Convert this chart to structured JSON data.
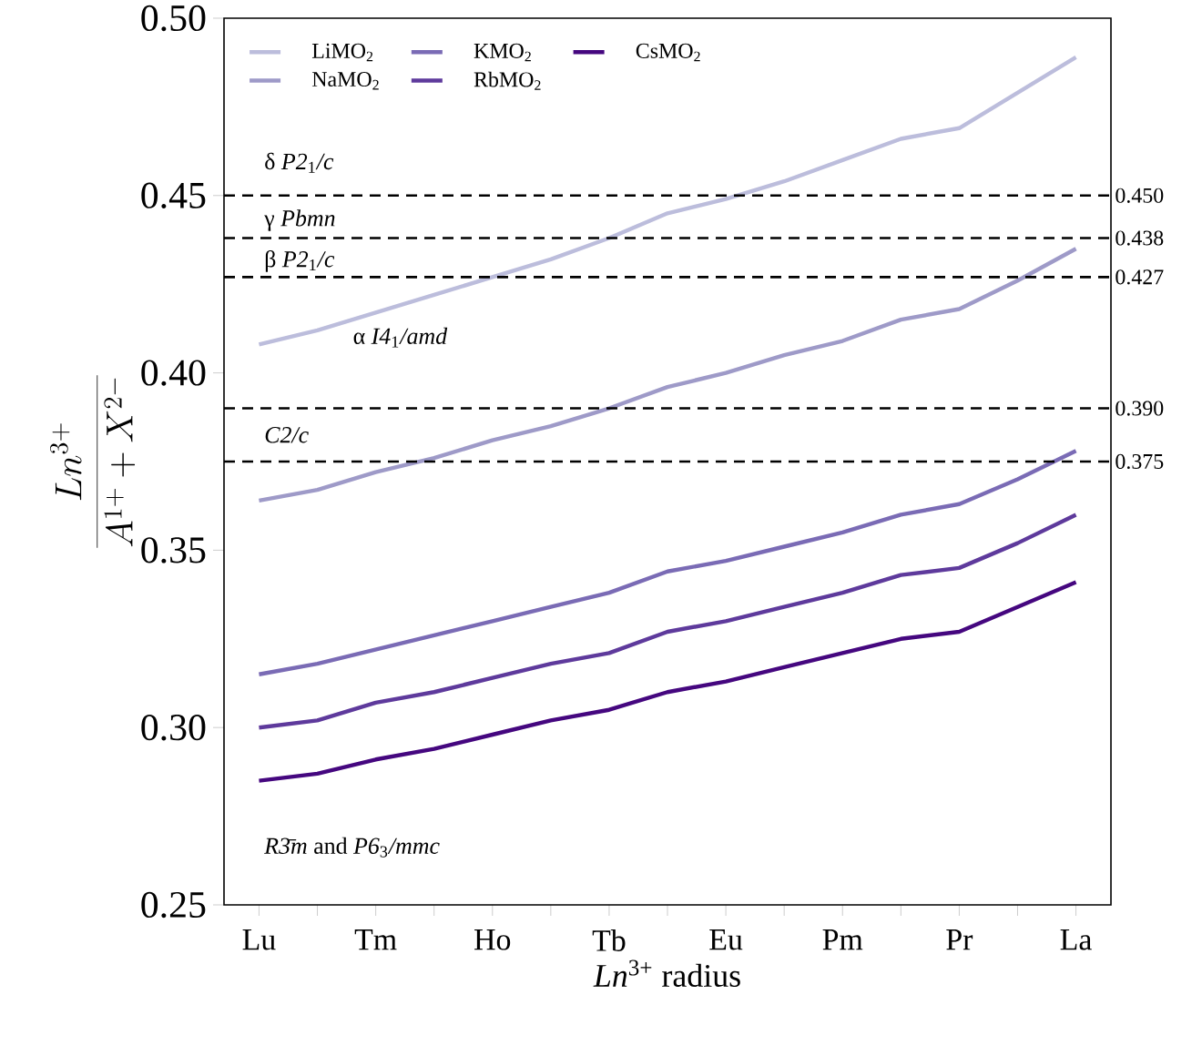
{
  "chart_data": {
    "type": "line",
    "xlabel": "*Ln*$^{3+}$ radius",
    "ylabel": "\\frac{Ln^{3+}}{A^{1+}+X^{2-}}",
    "categories": [
      "Lu",
      null,
      "Tm",
      null,
      "Ho",
      null,
      "Tb",
      null,
      "Eu",
      null,
      "Pm",
      null,
      "Pr",
      null,
      "La"
    ],
    "series": [
      {
        "name": "LiMO$_{2}$",
        "color": "#bcbddc",
        "values": [
          0.408,
          0.412,
          0.417,
          0.422,
          0.427,
          0.432,
          0.438,
          0.445,
          0.449,
          0.454,
          0.46,
          0.466,
          0.469,
          0.479,
          0.489
        ]
      },
      {
        "name": "NaMO$_{2}$",
        "color": "#9e9ac8",
        "values": [
          0.364,
          0.367,
          0.372,
          0.376,
          0.381,
          0.385,
          0.39,
          0.396,
          0.4,
          0.405,
          0.409,
          0.415,
          0.418,
          0.426,
          0.435
        ]
      },
      {
        "name": "KMO$_{2}$",
        "color": "#7a6bb5",
        "values": [
          0.315,
          0.318,
          0.322,
          0.326,
          0.33,
          0.334,
          0.338,
          0.344,
          0.347,
          0.351,
          0.355,
          0.36,
          0.363,
          0.37,
          0.378
        ]
      },
      {
        "name": "RbMO$_{2}$",
        "color": "#5e3a9c",
        "values": [
          0.3,
          0.302,
          0.307,
          0.31,
          0.314,
          0.318,
          0.321,
          0.327,
          0.33,
          0.334,
          0.338,
          0.343,
          0.345,
          0.352,
          0.36
        ]
      },
      {
        "name": "CsMO$_{2}$",
        "color": "#45077f",
        "values": [
          0.285,
          0.287,
          0.291,
          0.294,
          0.298,
          0.302,
          0.305,
          0.31,
          0.313,
          0.317,
          0.321,
          0.325,
          0.327,
          0.334,
          0.341
        ]
      }
    ],
    "ylim": [
      0.25,
      0.5
    ],
    "yticks": [
      {
        "value": 0.25,
        "label": "0.25"
      },
      {
        "value": 0.3,
        "label": "0.30"
      },
      {
        "value": 0.35,
        "label": "0.35"
      },
      {
        "value": 0.4,
        "label": "0.40"
      },
      {
        "value": 0.45,
        "label": "0.45"
      },
      {
        "value": 0.5,
        "label": "0.50"
      }
    ],
    "ref_lines": [
      {
        "axis": "y",
        "value": 0.45,
        "label": "0.450",
        "color": "#000000",
        "line_style": "dashed"
      },
      {
        "axis": "y",
        "value": 0.438,
        "label": "0.438",
        "color": "#000000",
        "line_style": "dashed"
      },
      {
        "axis": "y",
        "value": 0.427,
        "label": "0.427",
        "color": "#000000",
        "line_style": "dashed"
      },
      {
        "axis": "y",
        "value": 0.39,
        "label": "0.390",
        "color": "#000000",
        "line_style": "dashed"
      },
      {
        "axis": "y",
        "value": 0.375,
        "label": "0.375",
        "color": "#000000",
        "line_style": "dashed"
      }
    ],
    "annotations": [
      "δ *P2*$_{1}$*/c*",
      "γ *Pbmn*",
      "β *P2*$_{1}$*/c*",
      "α *I4*$_{1}$*/amd*",
      "*C2/c*",
      "*R3̄m* and *P6*$_{3}$*/mmc*"
    ],
    "legend": "top left",
    "line_style": "solid",
    "marker": "none",
    "grid": false
  }
}
